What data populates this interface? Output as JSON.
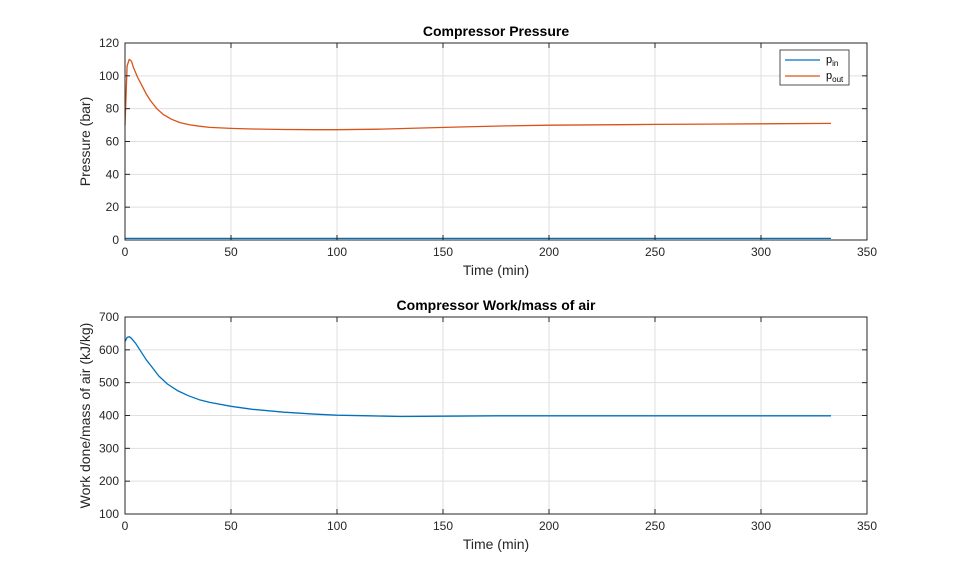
{
  "chart_data": [
    {
      "type": "line",
      "title": "Compressor Pressure",
      "xlabel": "Time (min)",
      "ylabel": "Pressure (bar)",
      "xlim": [
        0,
        350
      ],
      "ylim": [
        0,
        120
      ],
      "xticks": [
        0,
        50,
        100,
        150,
        200,
        250,
        300,
        350
      ],
      "yticks": [
        0,
        20,
        40,
        60,
        80,
        100,
        120
      ],
      "grid": true,
      "legend_position": "top-right",
      "series": [
        {
          "name": "p",
          "subscript": "in",
          "color": "#0072BD",
          "x": [
            0,
            50,
            100,
            150,
            200,
            250,
            300,
            333
          ],
          "y": [
            1,
            1,
            1,
            1,
            1,
            1,
            1,
            1
          ]
        },
        {
          "name": "p",
          "subscript": "out",
          "color": "#D95319",
          "x": [
            0,
            1,
            2,
            3,
            4,
            6,
            8,
            10,
            12,
            15,
            18,
            22,
            26,
            30,
            35,
            40,
            50,
            60,
            75,
            90,
            100,
            120,
            140,
            160,
            180,
            200,
            225,
            250,
            275,
            300,
            333
          ],
          "y": [
            70,
            106,
            110,
            109,
            105,
            99,
            94,
            89,
            85,
            80,
            76.5,
            73.5,
            71.5,
            70.3,
            69.3,
            68.6,
            68,
            67.6,
            67.3,
            67.2,
            67.2,
            67.5,
            68.2,
            68.9,
            69.5,
            69.9,
            70.2,
            70.4,
            70.6,
            70.8,
            71
          ]
        }
      ]
    },
    {
      "type": "line",
      "title": "Compressor Work/mass of air",
      "xlabel": "Time (min)",
      "ylabel": "Work done/mass of air (kJ/kg)",
      "xlim": [
        0,
        350
      ],
      "ylim": [
        100,
        700
      ],
      "xticks": [
        0,
        50,
        100,
        150,
        200,
        250,
        300,
        350
      ],
      "yticks": [
        100,
        200,
        300,
        400,
        500,
        600,
        700
      ],
      "grid": true,
      "series": [
        {
          "color": "#0072BD",
          "x": [
            0,
            1,
            2,
            3,
            5,
            7,
            10,
            13,
            16,
            20,
            25,
            30,
            35,
            40,
            50,
            60,
            75,
            90,
            100,
            115,
            130,
            150,
            175,
            200,
            250,
            300,
            333
          ],
          "y": [
            625,
            638,
            640,
            635,
            620,
            600,
            570,
            545,
            520,
            496,
            475,
            460,
            448,
            440,
            428,
            419,
            410,
            404,
            401,
            399,
            397,
            398,
            399,
            399,
            399,
            399,
            399
          ]
        }
      ]
    }
  ]
}
